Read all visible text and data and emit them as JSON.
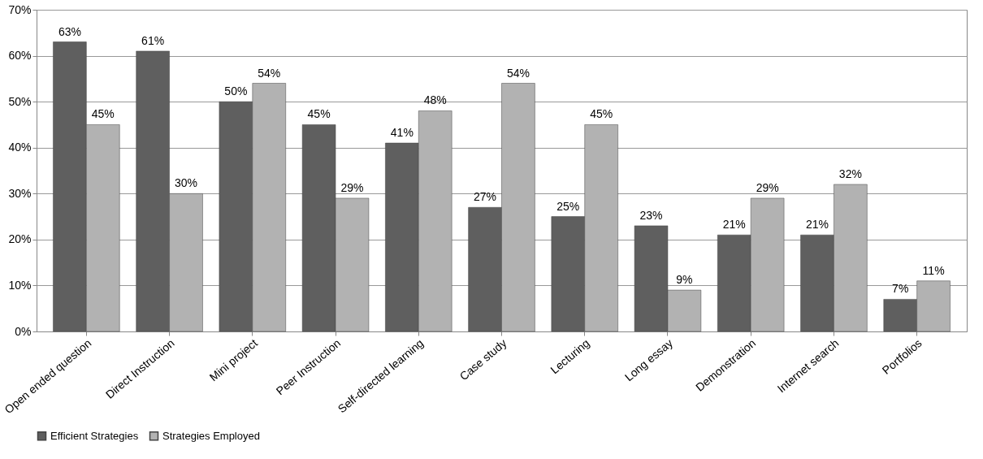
{
  "chart_data": {
    "type": "bar",
    "categories": [
      "Open ended question",
      "Direct Instruction",
      "Mini project",
      "Peer Instruction",
      "Self-directed learning",
      "Case study",
      "Lecturing",
      "Long essay",
      "Demonstration",
      "Internet search",
      "Portfolios"
    ],
    "series": [
      {
        "name": "Efficient Strategies",
        "color": "#5f5f5f",
        "values": [
          63,
          61,
          50,
          45,
          41,
          27,
          25,
          23,
          21,
          21,
          7
        ],
        "value_labels": [
          "63%",
          "61%",
          "50%",
          "45%",
          "41%",
          "27%",
          "25%",
          "23%",
          "21%",
          "21%",
          "7%"
        ]
      },
      {
        "name": "Strategies Employed",
        "color": "#b2b2b2",
        "values": [
          45,
          30,
          54,
          29,
          48,
          54,
          45,
          9,
          29,
          32,
          11
        ],
        "value_labels": [
          "45%",
          "30%",
          "54%",
          "29%",
          "48%",
          "54%",
          "45%",
          "9%",
          "29%",
          "32%",
          "11%"
        ]
      }
    ],
    "ylim": [
      0,
      70
    ],
    "yticks": [
      {
        "value": 0,
        "label": "0%"
      },
      {
        "value": 10,
        "label": "10%"
      },
      {
        "value": 20,
        "label": "20%"
      },
      {
        "value": 30,
        "label": "30%"
      },
      {
        "value": 40,
        "label": "40%"
      },
      {
        "value": 50,
        "label": "50%"
      },
      {
        "value": 60,
        "label": "60%"
      },
      {
        "value": 70,
        "label": "70%"
      }
    ],
    "grid": "y",
    "legend": "bottom"
  }
}
